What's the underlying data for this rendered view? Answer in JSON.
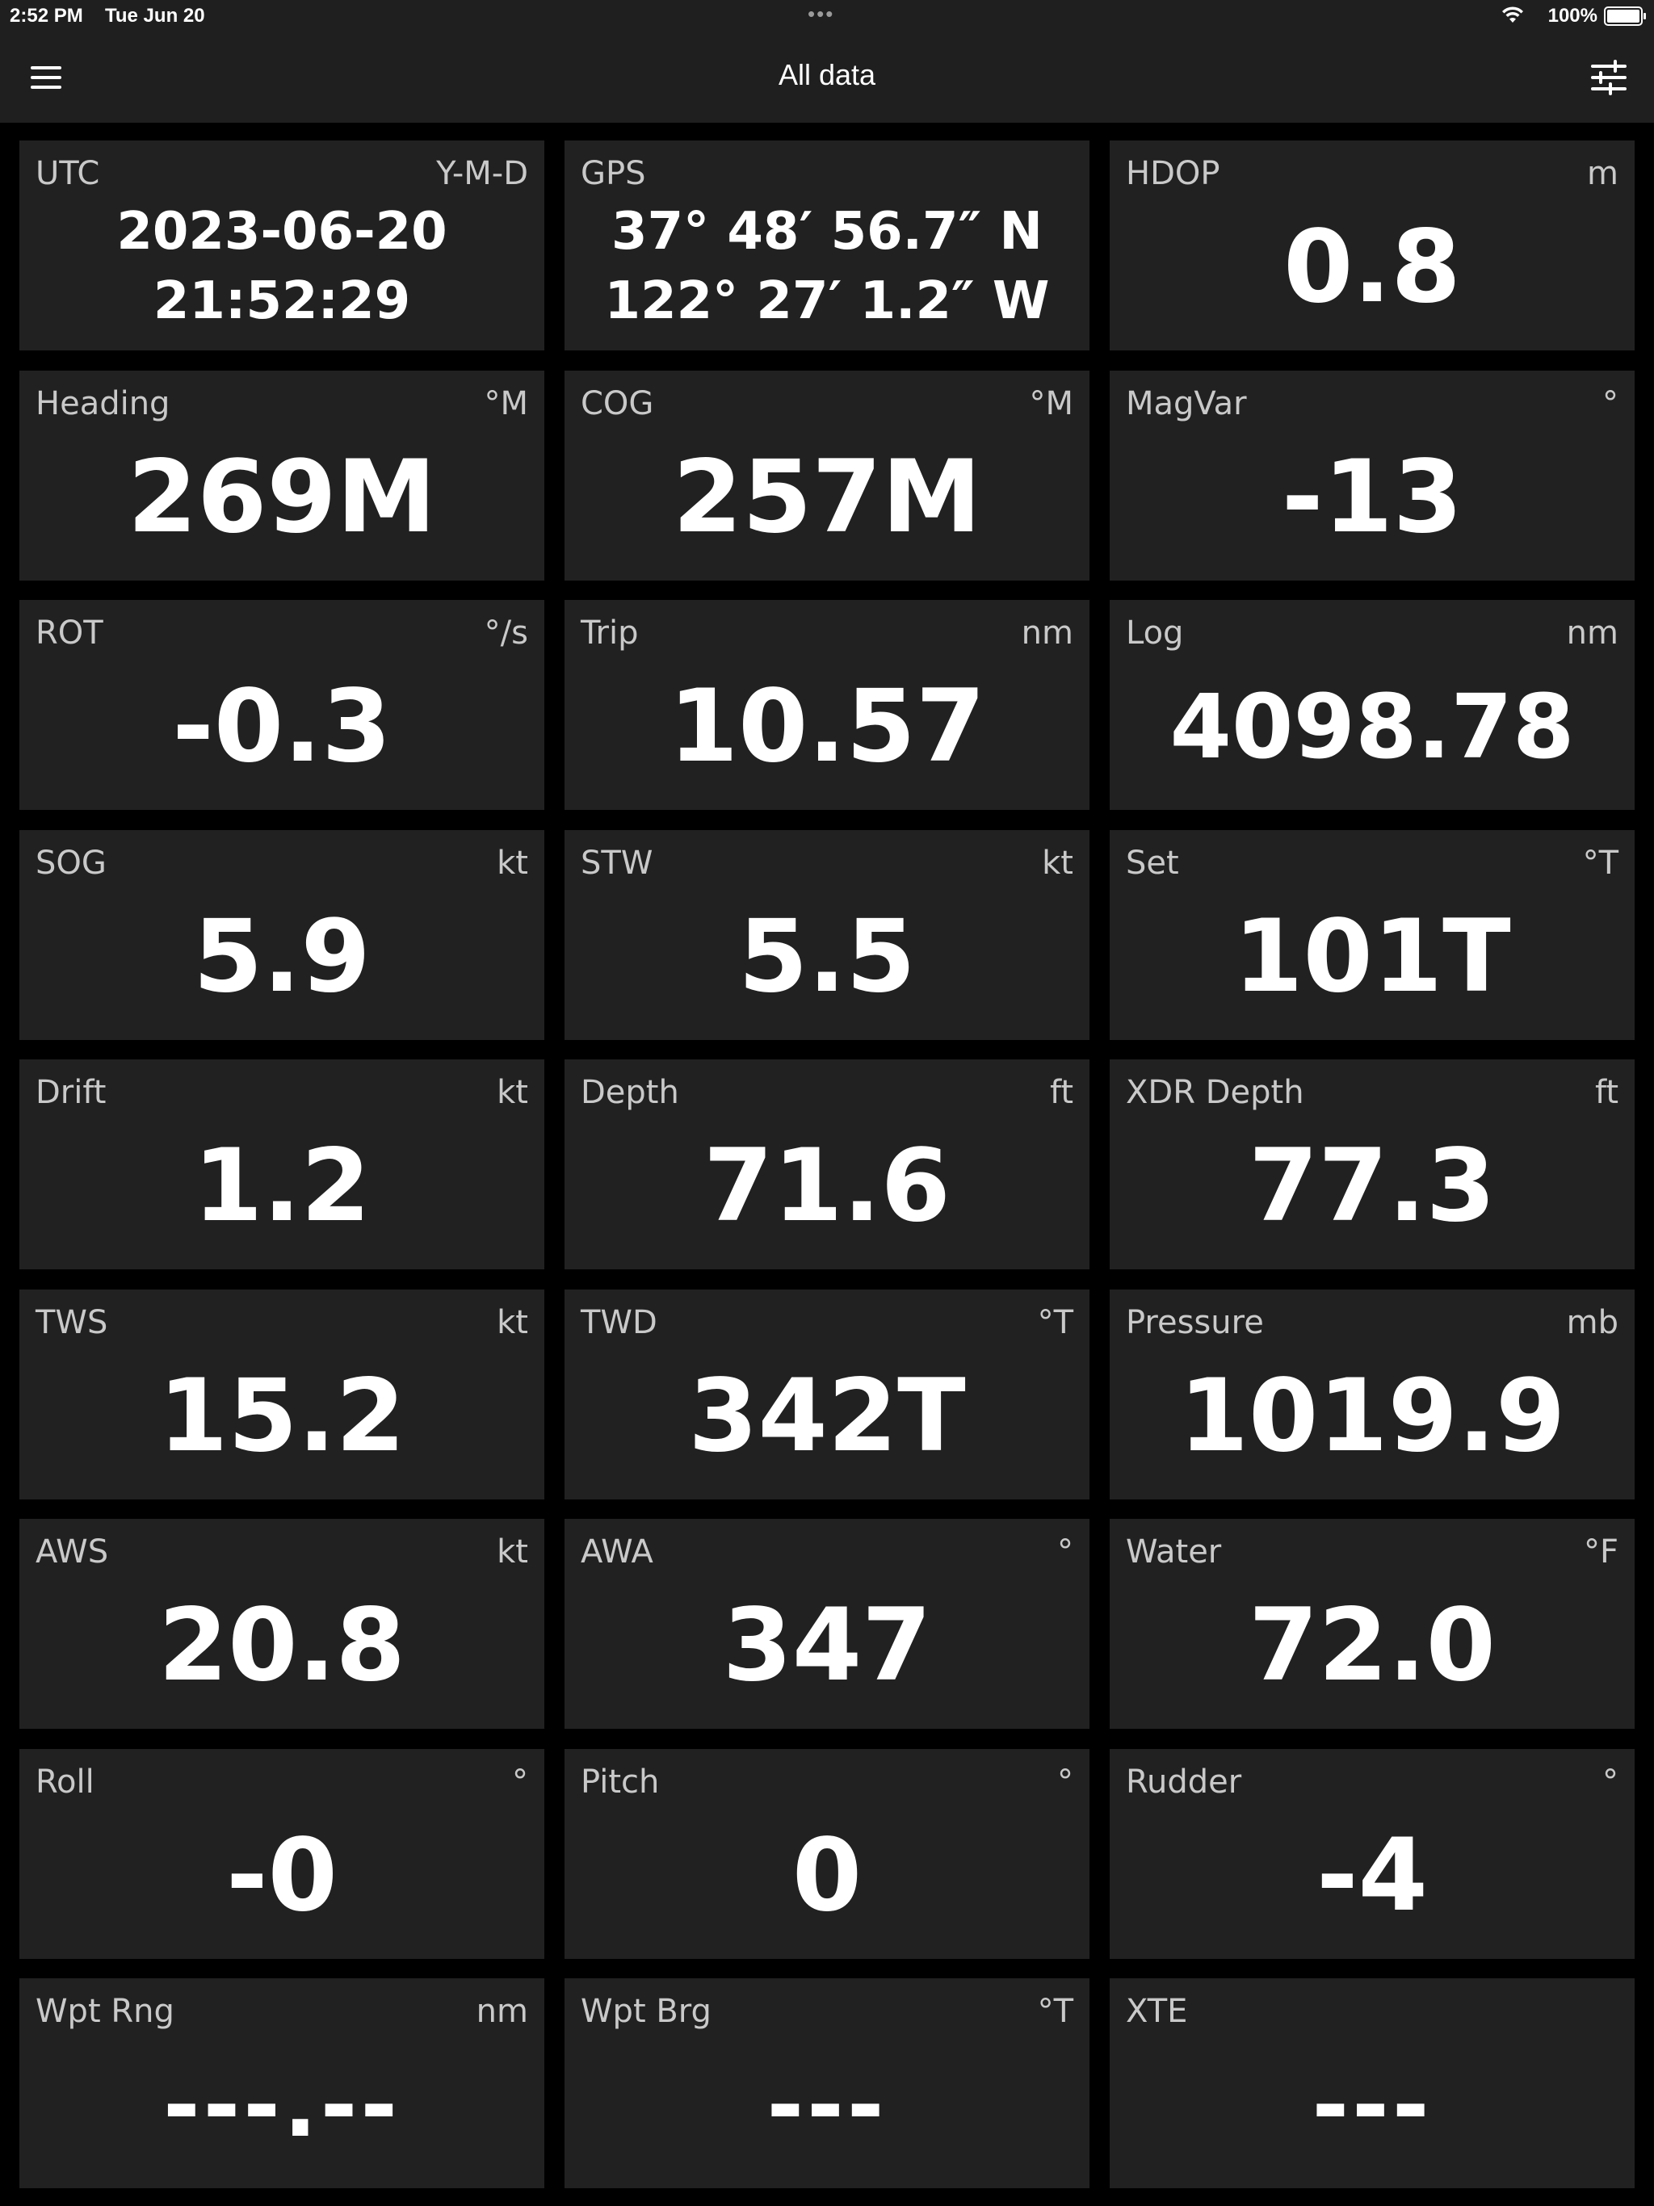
{
  "status": {
    "time": "2:52 PM",
    "date": "Tue Jun 20",
    "battery": "100%"
  },
  "nav": {
    "title": "All data",
    "menu_icon": "hamburger-menu-icon",
    "settings_icon": "sliders-icon"
  },
  "tiles": [
    {
      "label": "UTC",
      "unit": "Y-M-D",
      "line1": "2023-06-20",
      "line2": "21:52:29"
    },
    {
      "label": "GPS",
      "unit": "",
      "line1": "37° 48′ 56.7″ N",
      "line2": "122° 27′ 1.2″ W"
    },
    {
      "label": "HDOP",
      "unit": "m",
      "value": "0.8"
    },
    {
      "label": "Heading",
      "unit": "°M",
      "value": "269M"
    },
    {
      "label": "COG",
      "unit": "°M",
      "value": "257M"
    },
    {
      "label": "MagVar",
      "unit": "°",
      "value": "-13"
    },
    {
      "label": "ROT",
      "unit": "°/s",
      "value": "-0.3"
    },
    {
      "label": "Trip",
      "unit": "nm",
      "value": "10.57"
    },
    {
      "label": "Log",
      "unit": "nm",
      "value": "4098.78"
    },
    {
      "label": "SOG",
      "unit": "kt",
      "value": "5.9"
    },
    {
      "label": "STW",
      "unit": "kt",
      "value": "5.5"
    },
    {
      "label": "Set",
      "unit": "°T",
      "value": "101T"
    },
    {
      "label": "Drift",
      "unit": "kt",
      "value": "1.2"
    },
    {
      "label": "Depth",
      "unit": "ft",
      "value": "71.6"
    },
    {
      "label": "XDR Depth",
      "unit": "ft",
      "value": "77.3"
    },
    {
      "label": "TWS",
      "unit": "kt",
      "value": "15.2"
    },
    {
      "label": "TWD",
      "unit": "°T",
      "value": "342T"
    },
    {
      "label": "Pressure",
      "unit": "mb",
      "value": "1019.9"
    },
    {
      "label": "AWS",
      "unit": "kt",
      "value": "20.8"
    },
    {
      "label": "AWA",
      "unit": "°",
      "value": "347"
    },
    {
      "label": "Water",
      "unit": "°F",
      "value": "72.0"
    },
    {
      "label": "Roll",
      "unit": "°",
      "value": "-0"
    },
    {
      "label": "Pitch",
      "unit": "°",
      "value": "0"
    },
    {
      "label": "Rudder",
      "unit": "°",
      "value": "-4"
    },
    {
      "label": "Wpt Rng",
      "unit": "nm",
      "value": "---.--"
    },
    {
      "label": "Wpt Brg",
      "unit": "°T",
      "value": "---"
    },
    {
      "label": "XTE",
      "unit": "",
      "value": "---"
    }
  ]
}
